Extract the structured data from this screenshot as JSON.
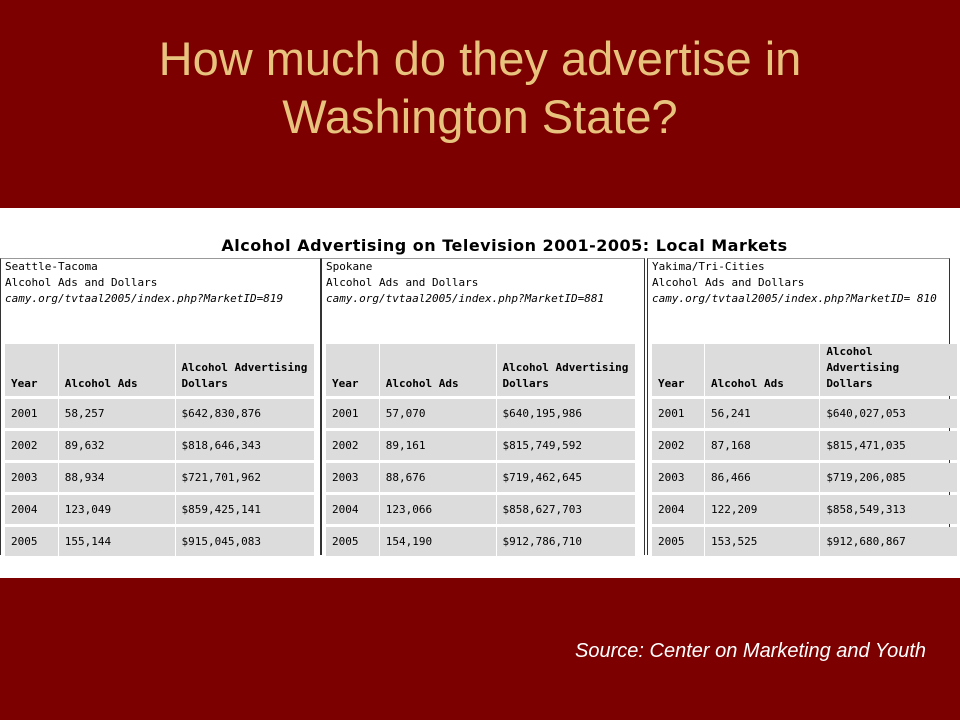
{
  "slide": {
    "title_line1": "How much do they advertise in",
    "title_line2": "Washington State?",
    "source": "Source: Center on Marketing and Youth"
  },
  "figure": {
    "title": "Alcohol Advertising on Television 2001-2005: Local Markets",
    "columns": [
      "Year",
      "Alcohol Ads",
      "Alcohol Advertising Dollars"
    ],
    "markets": [
      {
        "name": "Seattle-Tacoma",
        "subtitle": "Alcohol Ads and Dollars",
        "url": "camy.org/tvtaal2005/index.php?MarketID=819",
        "rows": [
          [
            "2001",
            "58,257",
            "$642,830,876"
          ],
          [
            "2002",
            "89,632",
            "$818,646,343"
          ],
          [
            "2003",
            "88,934",
            "$721,701,962"
          ],
          [
            "2004",
            "123,049",
            "$859,425,141"
          ],
          [
            "2005",
            "155,144",
            "$915,045,083"
          ]
        ]
      },
      {
        "name": "Spokane",
        "subtitle": "Alcohol Ads and Dollars",
        "url": "camy.org/tvtaal2005/index.php?MarketID=881",
        "rows": [
          [
            "2001",
            "57,070",
            "$640,195,986"
          ],
          [
            "2002",
            "89,161",
            "$815,749,592"
          ],
          [
            "2003",
            "88,676",
            "$719,462,645"
          ],
          [
            "2004",
            "123,066",
            "$858,627,703"
          ],
          [
            "2005",
            "154,190",
            "$912,786,710"
          ]
        ]
      },
      {
        "name": "Yakima/Tri-Cities",
        "subtitle": "Alcohol Ads and Dollars",
        "url": "camy.org/tvtaal2005/index.php?MarketID= 810",
        "rows": [
          [
            "2001",
            "56,241",
            "$640,027,053"
          ],
          [
            "2002",
            "87,168",
            "$815,471,035"
          ],
          [
            "2003",
            "86,466",
            "$719,206,085"
          ],
          [
            "2004",
            "122,209",
            "$858,549,313"
          ],
          [
            "2005",
            "153,525",
            "$912,680,867"
          ]
        ]
      }
    ]
  }
}
